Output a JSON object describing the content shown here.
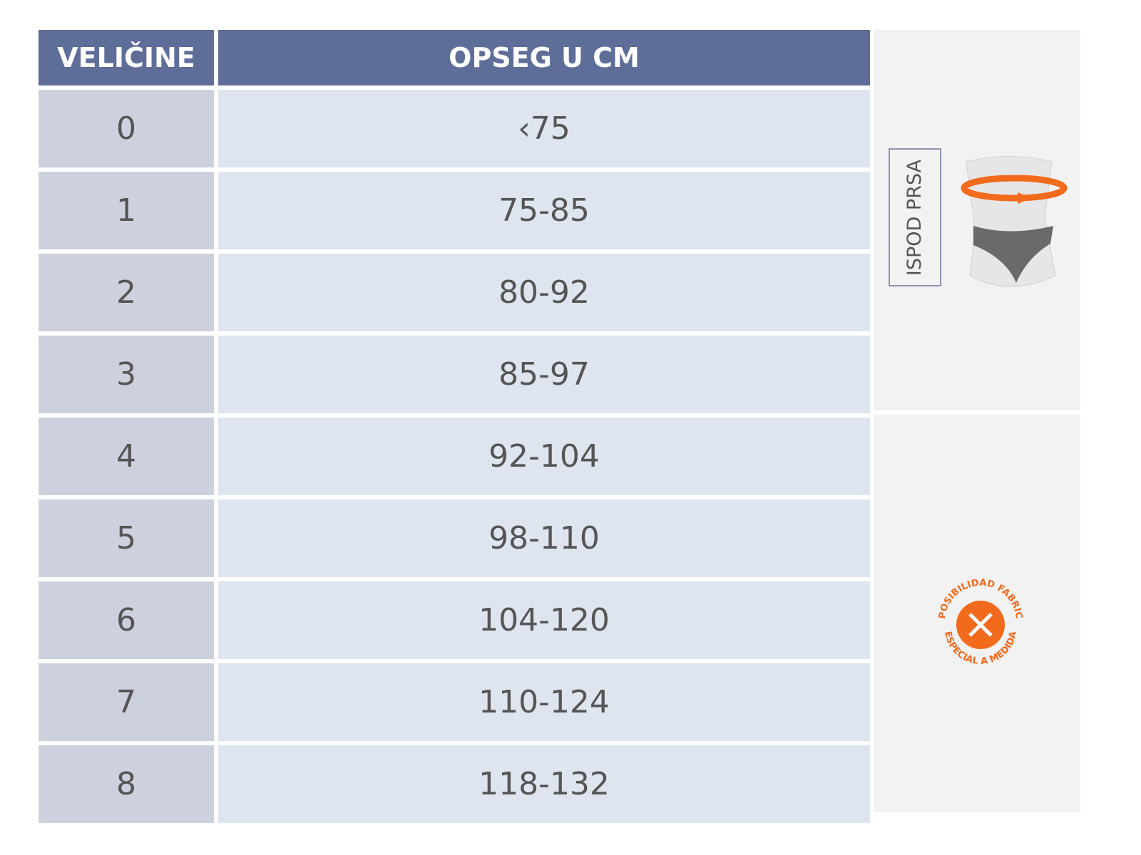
{
  "table": {
    "header": [
      "VELIČINE",
      "OPSEG U CM"
    ],
    "rows": [
      [
        "0",
        "‹75"
      ],
      [
        "1",
        "75-85"
      ],
      [
        "2",
        "80-92"
      ],
      [
        "3",
        "85-97"
      ],
      [
        "4",
        "92-104"
      ],
      [
        "5",
        "98-110"
      ],
      [
        "6",
        "104-120"
      ],
      [
        "7",
        "110-124"
      ],
      [
        "8",
        "118-132"
      ]
    ]
  },
  "side": {
    "measure_label": "ISPOD PRSA",
    "badge_top": "POSIBILIDAD FABRIC",
    "badge_bottom": "ESPECIAL A MEDIDA"
  }
}
